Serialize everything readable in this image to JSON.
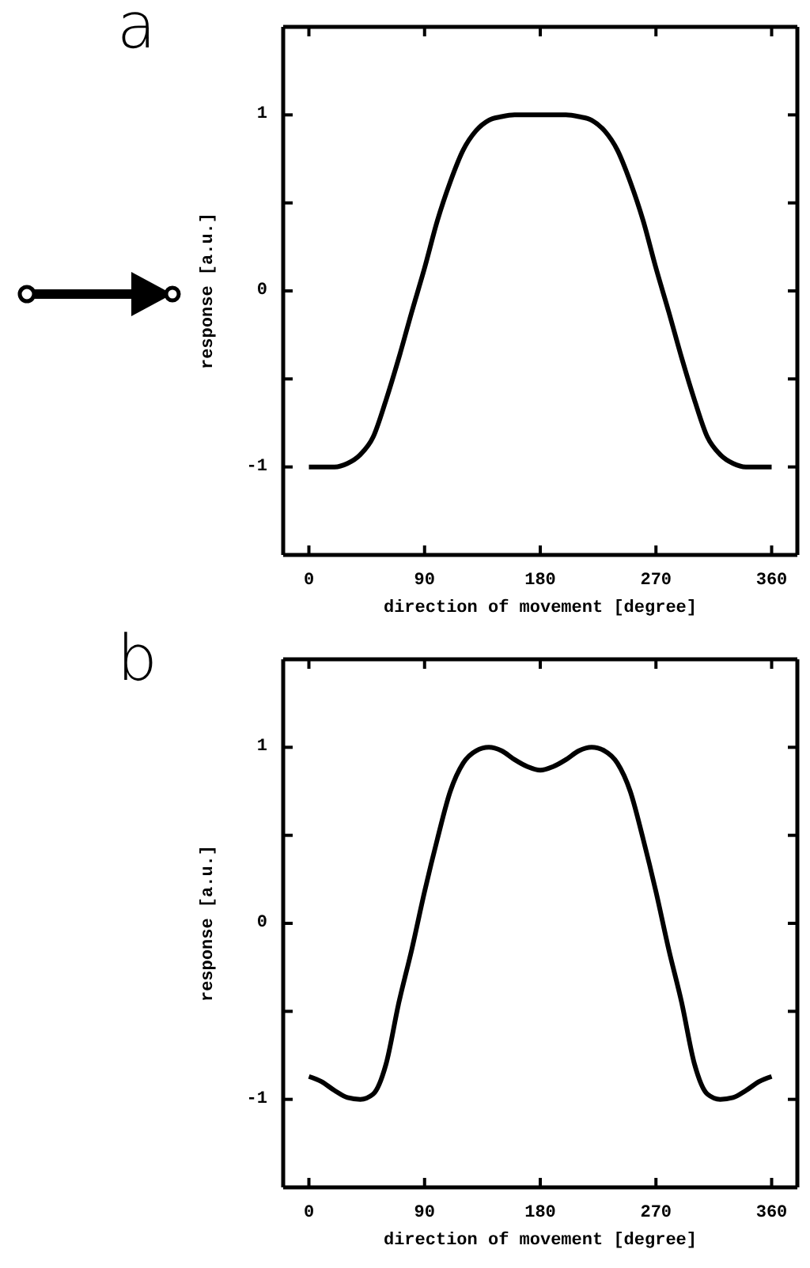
{
  "chart_data": [
    {
      "type": "line",
      "title": "a",
      "xlabel": "direction of movement [degree]",
      "ylabel": "response [a.u.]",
      "x": [
        0,
        10,
        20,
        30,
        40,
        50,
        60,
        70,
        80,
        90,
        100,
        110,
        120,
        130,
        140,
        150,
        160,
        170,
        180,
        190,
        200,
        210,
        220,
        230,
        240,
        250,
        260,
        270,
        280,
        290,
        300,
        310,
        320,
        330,
        340,
        350,
        360
      ],
      "series": [
        {
          "color": "#000000",
          "values": [
            -1,
            -1,
            -1,
            -0.98,
            -0.93,
            -0.83,
            -0.62,
            -0.38,
            -0.12,
            0.13,
            0.4,
            0.62,
            0.8,
            0.91,
            0.97,
            0.99,
            1,
            1,
            1,
            1,
            1,
            0.99,
            0.97,
            0.91,
            0.8,
            0.62,
            0.4,
            0.13,
            -0.12,
            -0.38,
            -0.62,
            -0.83,
            -0.93,
            -0.98,
            -1,
            -1,
            -1
          ]
        }
      ],
      "xlim": [
        -20,
        380
      ],
      "xticks": [
        0,
        90,
        180,
        270,
        360
      ],
      "ylim": [
        -1.5,
        1.5
      ],
      "yticks": [
        {
          "value": -1,
          "label": "-1"
        },
        {
          "value": -0.5,
          "label": null
        },
        {
          "value": 0,
          "label": "0"
        },
        {
          "value": 0.5,
          "label": null
        },
        {
          "value": 1,
          "label": "1"
        }
      ],
      "marker": "none",
      "line_style": "solid"
    },
    {
      "type": "line",
      "title": "b",
      "xlabel": "direction of movement [degree]",
      "ylabel": "response [a.u.]",
      "x": [
        0,
        10,
        20,
        30,
        40,
        50,
        60,
        70,
        80,
        90,
        100,
        110,
        120,
        130,
        140,
        150,
        160,
        170,
        180,
        190,
        200,
        210,
        220,
        230,
        240,
        250,
        260,
        270,
        280,
        290,
        300,
        310,
        320,
        330,
        340,
        350,
        360
      ],
      "series": [
        {
          "color": "#000000",
          "values": [
            -0.87,
            -0.9,
            -0.95,
            -0.99,
            -1,
            -0.97,
            -0.8,
            -0.45,
            -0.15,
            0.18,
            0.48,
            0.75,
            0.91,
            0.98,
            1,
            0.98,
            0.93,
            0.89,
            0.87,
            0.89,
            0.93,
            0.98,
            1,
            0.98,
            0.91,
            0.75,
            0.48,
            0.18,
            -0.15,
            -0.45,
            -0.8,
            -0.97,
            -1,
            -0.99,
            -0.95,
            -0.9,
            -0.87
          ]
        }
      ],
      "xlim": [
        -20,
        380
      ],
      "xticks": [
        0,
        90,
        180,
        270,
        360
      ],
      "ylim": [
        -1.5,
        1.5
      ],
      "yticks": [
        {
          "value": -1,
          "label": "-1"
        },
        {
          "value": -0.5,
          "label": null
        },
        {
          "value": 0,
          "label": "0"
        },
        {
          "value": 0.5,
          "label": null
        },
        {
          "value": 1,
          "label": "1"
        }
      ],
      "marker": "none",
      "line_style": "solid"
    }
  ]
}
